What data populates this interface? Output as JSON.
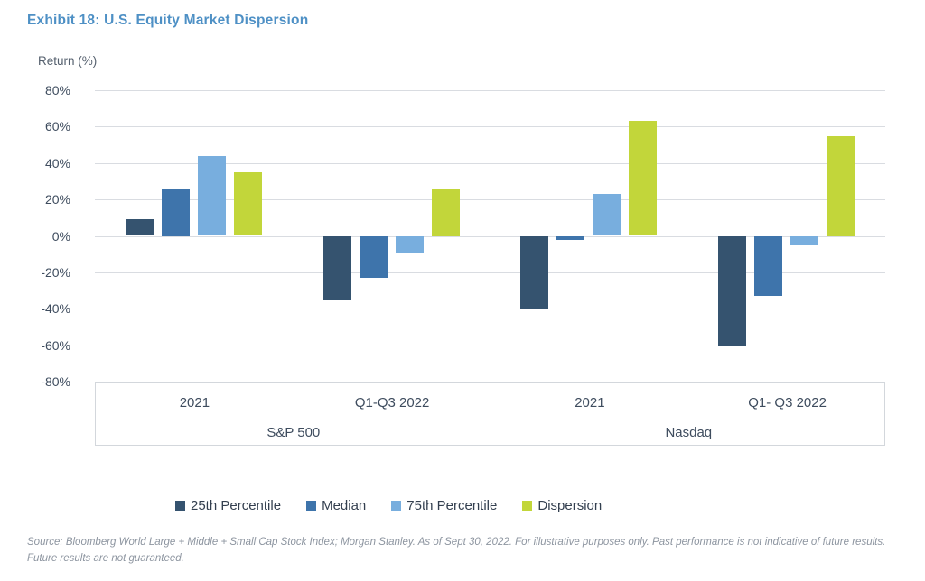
{
  "title": "Exhibit 18: U.S. Equity Market Dispersion",
  "source_note": "Source: Bloomberg World Large + Middle + Small Cap Stock Index; Morgan Stanley. As of Sept 30, 2022. For illustrative purposes only. Past performance is not indicative of future results. Future results are not guaranteed.",
  "colors": {
    "title_text": "#4E90C5",
    "axis_text": "#3E4C5E",
    "gridline": "#D9DCE1",
    "source_text": "#8D95A0"
  },
  "chart_data": {
    "type": "bar",
    "title": "Exhibit 18: U.S. Equity Market Dispersion",
    "ylabel": "Return (%)",
    "xlabel": "",
    "ylim": [
      -80,
      80
    ],
    "ytick_step": 20,
    "ytick_labels": [
      "80%",
      "60%",
      "40%",
      "20%",
      "0%",
      "-20%",
      "-40%",
      "-60%",
      "-80%"
    ],
    "grid": true,
    "legend_position": "bottom",
    "categories": [
      "2021",
      "Q1-Q3 2022",
      "2021",
      "Q1- Q3 2022"
    ],
    "category_groups": [
      {
        "label": "S&P 500",
        "category_indices": [
          0,
          1
        ]
      },
      {
        "label": "Nasdaq",
        "category_indices": [
          2,
          3
        ]
      }
    ],
    "series": [
      {
        "name": "25th Percentile",
        "color": "#35536F",
        "values": [
          9,
          -35,
          -40,
          -60
        ]
      },
      {
        "name": "Median",
        "color": "#3E74AB",
        "values": [
          26,
          -23,
          -2,
          -33
        ]
      },
      {
        "name": "75th Percentile",
        "color": "#78AEDE",
        "values": [
          44,
          -9,
          23,
          -5
        ]
      },
      {
        "name": "Dispersion",
        "color": "#C2D63A",
        "values": [
          35,
          26,
          63,
          55
        ]
      }
    ]
  }
}
